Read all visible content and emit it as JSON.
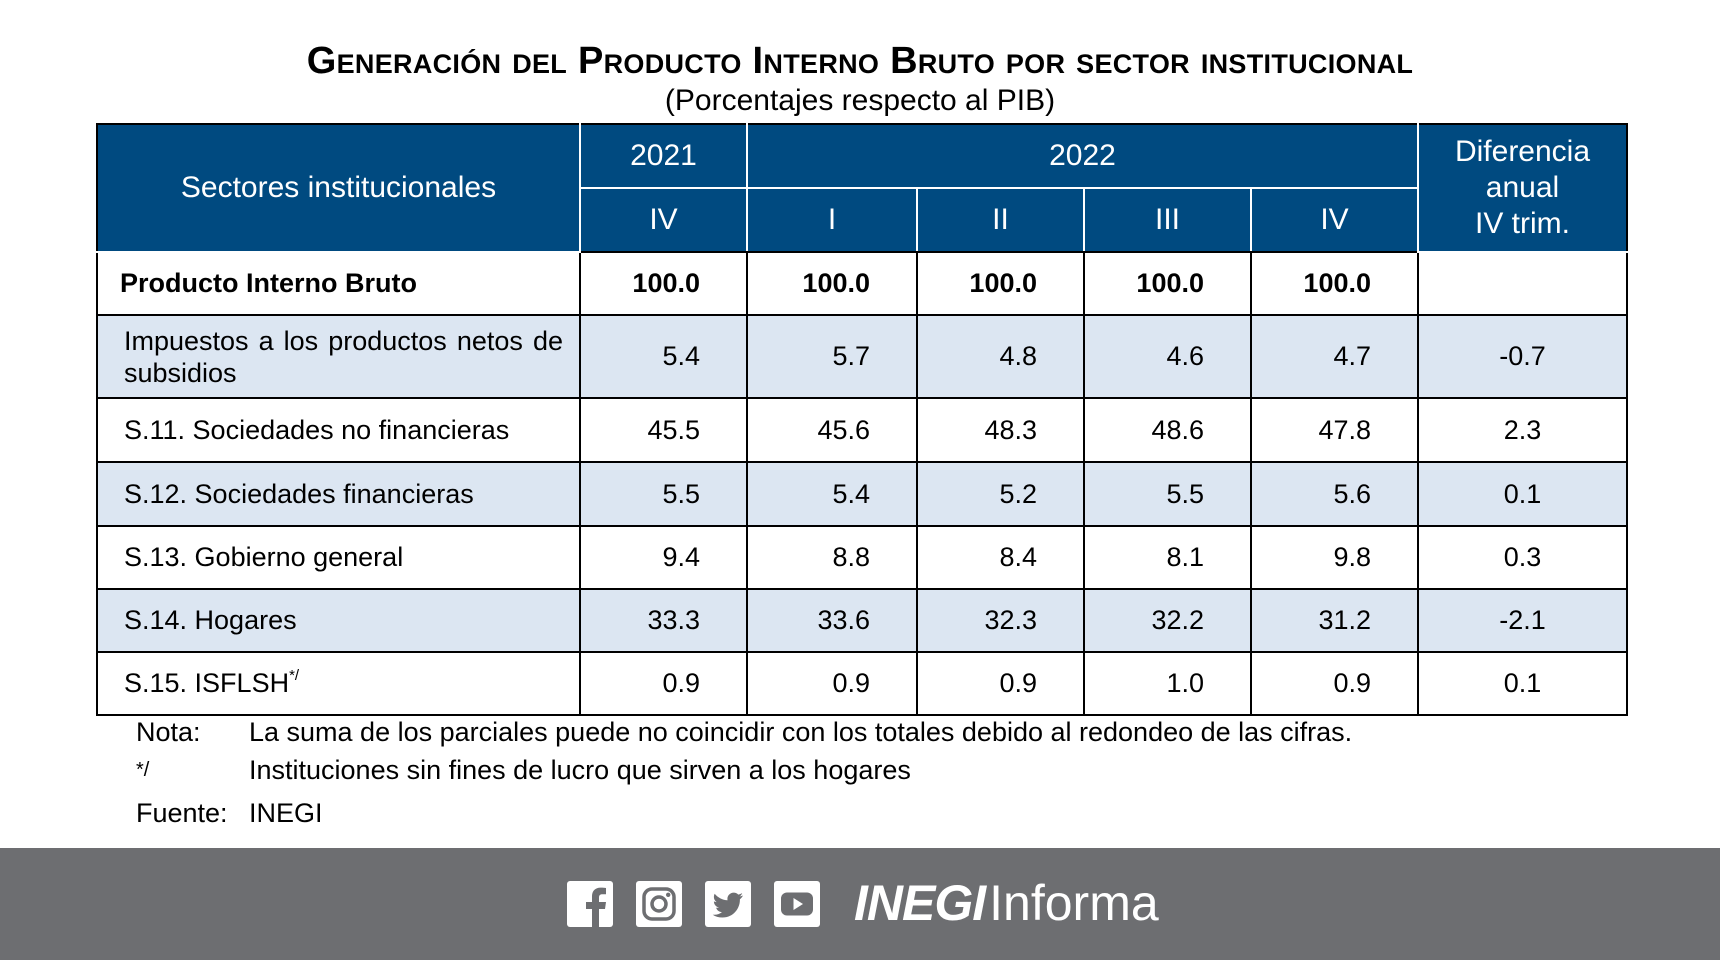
{
  "title": "Generación del Producto Interno Bruto por sector institucional",
  "subtitle": "(Porcentajes respecto al PIB)",
  "table": {
    "header": {
      "sector_col": "Sectores institucionales",
      "year_2021": "2021",
      "year_2022": "2022",
      "diff_line1": "Diferencia",
      "diff_line2": "anual",
      "diff_line3": "IV trim.",
      "quarters": [
        "IV",
        "I",
        "II",
        "III",
        "IV"
      ]
    },
    "rows": [
      {
        "label": "Producto Interno Bruto",
        "values": [
          "100.0",
          "100.0",
          "100.0",
          "100.0",
          "100.0"
        ],
        "diff": ""
      },
      {
        "label": "Impuestos a los productos netos de subsidios",
        "values": [
          "5.4",
          "5.7",
          "4.8",
          "4.6",
          "4.7"
        ],
        "diff": "-0.7"
      },
      {
        "label": "S.11. Sociedades no financieras",
        "values": [
          "45.5",
          "45.6",
          "48.3",
          "48.6",
          "47.8"
        ],
        "diff": "2.3"
      },
      {
        "label": "S.12. Sociedades financieras",
        "values": [
          "5.5",
          "5.4",
          "5.2",
          "5.5",
          "5.6"
        ],
        "diff": "0.1"
      },
      {
        "label": "S.13. Gobierno general",
        "values": [
          "9.4",
          "8.8",
          "8.4",
          "8.1",
          "9.8"
        ],
        "diff": "0.3"
      },
      {
        "label": "S.14. Hogares",
        "values": [
          "33.3",
          "33.6",
          "32.3",
          "32.2",
          "31.2"
        ],
        "diff": "-2.1"
      },
      {
        "label": "S.15. ISFLSH",
        "label_sup": "*/",
        "values": [
          "0.9",
          "0.9",
          "0.9",
          "1.0",
          "0.9"
        ],
        "diff": "0.1"
      }
    ]
  },
  "notes": {
    "nota_key": "Nota:",
    "nota_text": "La suma de los parciales puede no coincidir con los totales debido al redondeo de las cifras.",
    "star_key": "*/",
    "star_text": "Instituciones sin fines de lucro que sirven a los hogares",
    "fuente_key": "Fuente:",
    "fuente_text": "INEGI"
  },
  "footer": {
    "icons": [
      "facebook-icon",
      "instagram-icon",
      "twitter-icon",
      "youtube-icon"
    ],
    "brand_bold": "INEGI",
    "brand_regular": "Informa",
    "bg_color": "#6d6e71"
  },
  "colors": {
    "header_bg": "#004a80",
    "shade_row": "#dce6f2"
  }
}
